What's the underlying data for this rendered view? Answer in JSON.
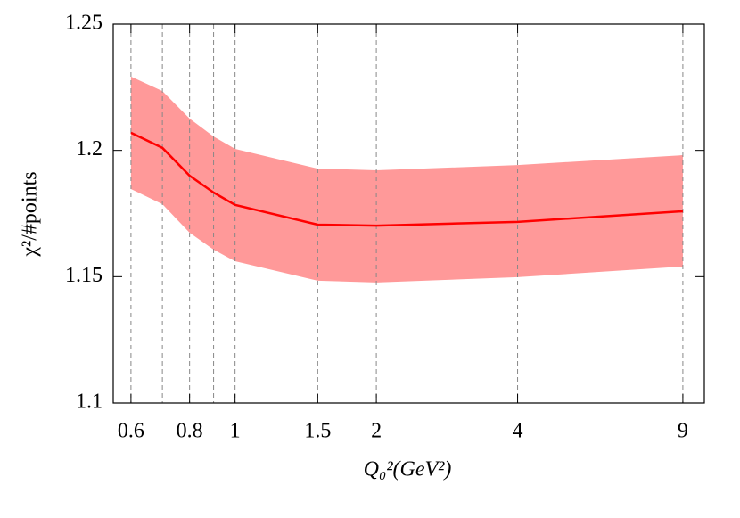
{
  "chart_data": {
    "type": "line",
    "xlabel": "Q₀²(GeV²)",
    "ylabel": "χ²/#points",
    "x": [
      0.6,
      0.7,
      0.8,
      0.9,
      1,
      1.5,
      2,
      4,
      9
    ],
    "series": [
      {
        "color": "#ff0000",
        "band_color": "#ff9999",
        "values": [
          1.207,
          1.201,
          1.19,
          1.1833,
          1.1784,
          1.1706,
          1.1702,
          1.1717,
          1.1759
        ],
        "upper": [
          1.2292,
          1.2235,
          1.2126,
          1.2055,
          1.2006,
          1.1928,
          1.1921,
          1.1942,
          1.1981
        ],
        "lower": [
          1.1847,
          1.1787,
          1.1674,
          1.1607,
          1.1561,
          1.1484,
          1.1477,
          1.1498,
          1.154
        ]
      }
    ],
    "xscale": "log",
    "xlim": [
      0.55,
      10
    ],
    "xticks": [
      0.6,
      0.8,
      1,
      1.5,
      2,
      4,
      9
    ],
    "ylim": [
      1.1,
      1.25
    ],
    "yticks": [
      1.1,
      1.15,
      1.2,
      1.25
    ],
    "grid": "x-dashed"
  }
}
